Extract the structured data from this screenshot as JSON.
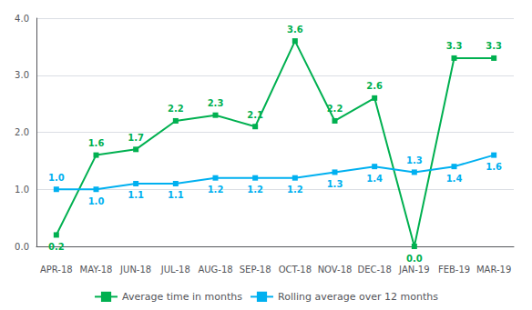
{
  "chart_data": {
    "type": "line",
    "categories": [
      "APR-18",
      "MAY-18",
      "JUN-18",
      "JUL-18",
      "AUG-18",
      "SEP-18",
      "OCT-18",
      "NOV-18",
      "DEC-18",
      "JAN-19",
      "FEB-19",
      "MAR-19"
    ],
    "series": [
      {
        "name": "Average time in months",
        "color": "#00b050",
        "values": [
          0.2,
          1.6,
          1.7,
          2.2,
          2.3,
          2.1,
          3.6,
          2.2,
          2.6,
          0.0,
          3.3,
          3.3
        ],
        "value_labels": [
          "0.2",
          "1.6",
          "1.7",
          "2.2",
          "2.3",
          "2.1",
          "3.6",
          "2.2",
          "2.6",
          "0.0",
          "3.3",
          "3.3"
        ]
      },
      {
        "name": "Rolling average over 12 months",
        "color": "#00b0f0",
        "values": [
          1.0,
          1.0,
          1.1,
          1.1,
          1.2,
          1.2,
          1.2,
          1.3,
          1.4,
          1.3,
          1.4,
          1.6
        ],
        "value_labels": [
          "1.0",
          "1.0",
          "1.1",
          "1.1",
          "1.2",
          "1.2",
          "1.2",
          "1.3",
          "1.4",
          "1.3",
          "1.4",
          "1.6"
        ]
      }
    ],
    "ylim": [
      0.0,
      4.0
    ],
    "yticks": [
      {
        "value": 0.0,
        "label": "0.0"
      },
      {
        "value": 1.0,
        "label": "1.0"
      },
      {
        "value": 2.0,
        "label": "2.0"
      },
      {
        "value": 3.0,
        "label": "3.0"
      },
      {
        "value": 4.0,
        "label": "4.0"
      }
    ],
    "grid": true,
    "legend": "bottom",
    "data_labels": true,
    "marker": "square"
  }
}
